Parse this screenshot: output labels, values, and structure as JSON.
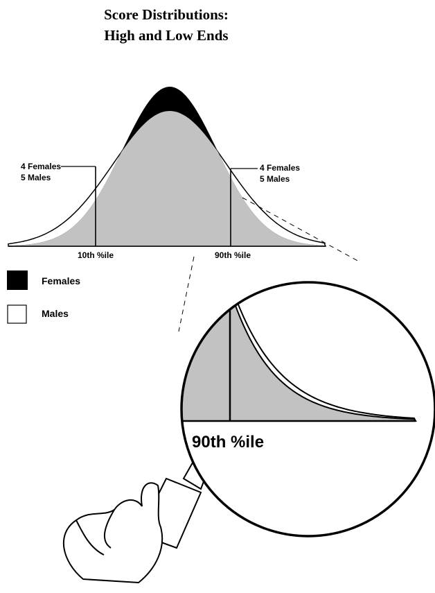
{
  "title": [
    "Score Distributions:",
    "High and Low Ends"
  ],
  "annotations": {
    "left": [
      "4 Females",
      "5 Males"
    ],
    "right": [
      "4 Females",
      "5 Males"
    ]
  },
  "percentiles": {
    "low": "10th %ile",
    "high": "90th %ile"
  },
  "zoom": {
    "label": "90th %ile"
  },
  "legend": [
    {
      "label": "Females"
    },
    {
      "label": "Males"
    }
  ]
}
